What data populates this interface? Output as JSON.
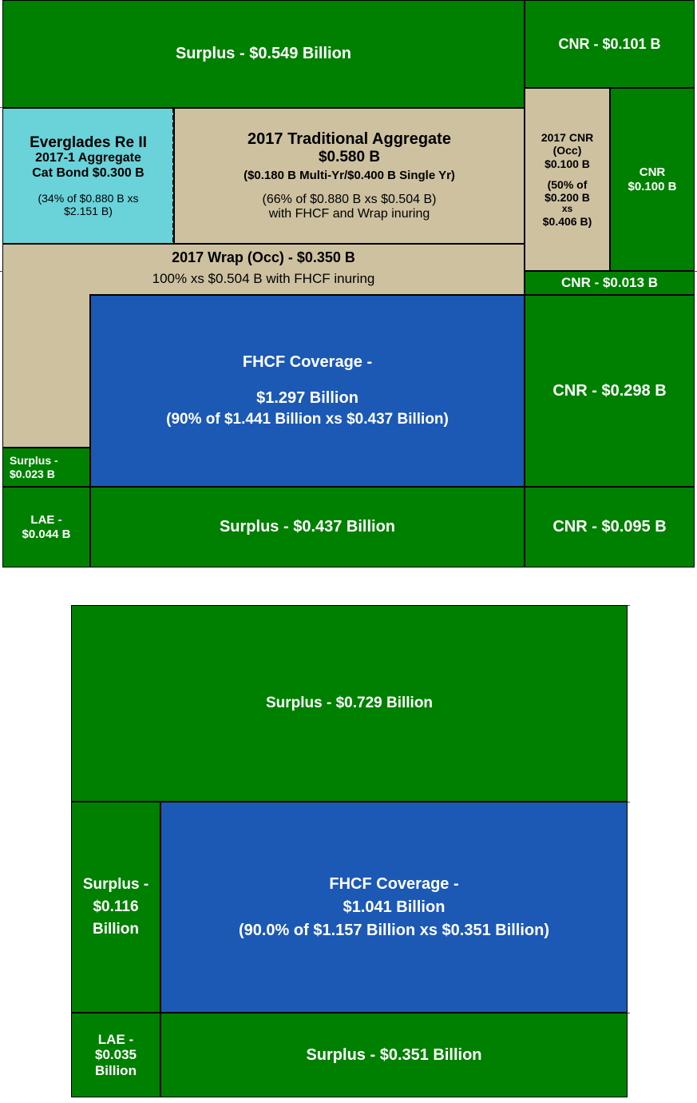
{
  "diagram1": {
    "surplus_top": "Surplus - $0.549 Billion",
    "cnr_top": "CNR - $0.101 B",
    "cat_bond": {
      "line1": "Everglades Re II",
      "line2": "2017-1 Aggregate",
      "line3": "Cat Bond $0.300 B",
      "line4": "(34% of $0.880 B xs",
      "line5": "$2.151 B)"
    },
    "traditional": {
      "line1": "2017 Traditional Aggregate",
      "line2": "$0.580 B",
      "line3": "($0.180 B Multi-Yr/$0.400 B Single Yr)",
      "line4": "(66% of $0.880 B xs $0.504 B)",
      "line5": "with FHCF and Wrap inuring"
    },
    "cnr_occ": {
      "line1": "2017 CNR",
      "line2": "(Occ)",
      "line3": "$0.100 B",
      "line4": "(50% of",
      "line5": "$0.200 B",
      "line6": "xs",
      "line7": "$0.406 B)"
    },
    "cnr_mid": {
      "line1": "CNR",
      "line2": "$0.100 B"
    },
    "wrap": {
      "line1": "2017 Wrap (Occ) - $0.350 B",
      "line2": "100% xs $0.504 B with FHCF inuring"
    },
    "cnr_013": "CNR - $0.013 B",
    "fhcf": {
      "line1": "FHCF Coverage -",
      "line2": "$1.297 Billion",
      "line3": "(90% of $1.441 Billion xs $0.437 Billion)"
    },
    "cnr_298": "CNR - $0.298 B",
    "surplus_small": {
      "line1": "Surplus -",
      "line2": "$0.023 B"
    },
    "lae": {
      "line1": "LAE -",
      "line2": "$0.044 B"
    },
    "surplus_bottom": "Surplus - $0.437 Billion",
    "cnr_095": "CNR - $0.095 B"
  },
  "diagram2": {
    "surplus_top": "Surplus - $0.729 Billion",
    "surplus_left": {
      "line1": "Surplus -",
      "line2": "$0.116",
      "line3": "Billion"
    },
    "fhcf": {
      "line1": "FHCF Coverage -",
      "line2": "$1.041 Billion",
      "line3": "(90.0% of $1.157 Billion xs $0.351 Billion)"
    },
    "lae": {
      "line1": "LAE -",
      "line2": "$0.035",
      "line3": "Billion"
    },
    "surplus_bottom": "Surplus - $0.351 Billion"
  },
  "colors": {
    "green": "#008000",
    "tan": "#cdc1a0",
    "cyan": "#6ad2d9",
    "blue": "#1c59b5"
  }
}
